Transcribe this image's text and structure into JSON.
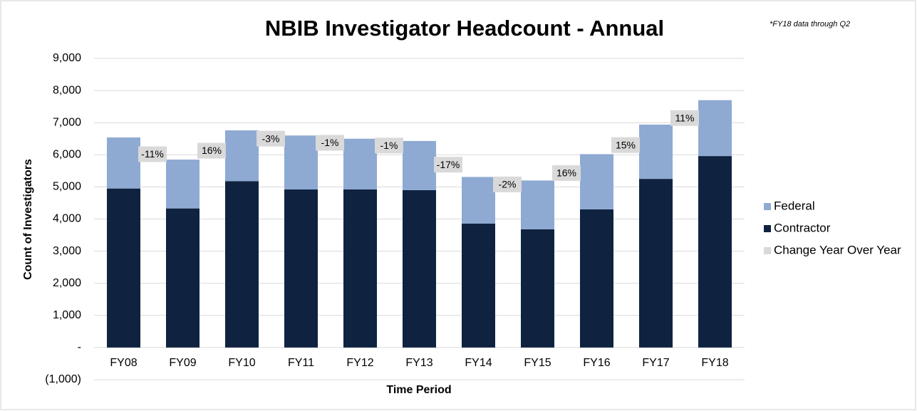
{
  "chart_data": {
    "type": "stacked_bar",
    "title": "NBIB Investigator Headcount - Annual",
    "annotation": "*FY18 data through Q2",
    "xlabel": "Time Period",
    "ylabel": "Count of Investigators",
    "categories": [
      "FY08",
      "FY09",
      "FY10",
      "FY11",
      "FY12",
      "FY13",
      "FY14",
      "FY15",
      "FY16",
      "FY17",
      "FY18"
    ],
    "series": [
      {
        "name": "Federal",
        "color": "#8eaad3",
        "values": [
          1590,
          1520,
          1580,
          1680,
          1580,
          1530,
          1450,
          1520,
          1720,
          1690,
          1740
        ]
      },
      {
        "name": "Contractor",
        "color": "#0f2340",
        "values": [
          4950,
          4330,
          5180,
          4920,
          4920,
          4900,
          3860,
          3680,
          4300,
          5250,
          5960
        ]
      },
      {
        "name": "Change Year Over Year",
        "color": "#d9d9d9",
        "values": [
          null,
          -11,
          16,
          -3,
          -1,
          -1,
          -17,
          -2,
          16,
          15,
          11
        ],
        "value_labels": [
          null,
          "-11%",
          "16%",
          "-3%",
          "-1%",
          "-1%",
          "-17%",
          "-2%",
          "16%",
          "15%",
          "11%"
        ]
      }
    ],
    "ylim": [
      -1000,
      9000
    ],
    "yticks": [
      {
        "value": -1000,
        "label": "(1,000)"
      },
      {
        "value": 0,
        "label": "-"
      },
      {
        "value": 1000,
        "label": "1,000"
      },
      {
        "value": 2000,
        "label": "2,000"
      },
      {
        "value": 3000,
        "label": "3,000"
      },
      {
        "value": 4000,
        "label": "4,000"
      },
      {
        "value": 5000,
        "label": "5,000"
      },
      {
        "value": 6000,
        "label": "6,000"
      },
      {
        "value": 7000,
        "label": "7,000"
      },
      {
        "value": 8000,
        "label": "8,000"
      },
      {
        "value": 9000,
        "label": "9,000"
      }
    ],
    "grid": true,
    "legend": "right"
  }
}
